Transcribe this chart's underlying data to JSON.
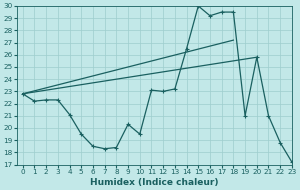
{
  "xlabel": "Humidex (Indice chaleur)",
  "bg_color": "#c2e8e8",
  "grid_color": "#9ecece",
  "line_color": "#1a6060",
  "ylim": [
    17,
    30
  ],
  "xlim": [
    -0.5,
    23
  ],
  "yticks": [
    17,
    18,
    19,
    20,
    21,
    22,
    23,
    24,
    25,
    26,
    27,
    28,
    29,
    30
  ],
  "xticks": [
    0,
    1,
    2,
    3,
    4,
    5,
    6,
    7,
    8,
    9,
    10,
    11,
    12,
    13,
    14,
    15,
    16,
    17,
    18,
    19,
    20,
    21,
    22,
    23
  ],
  "curve1_x": [
    0,
    1,
    2,
    3,
    4,
    5,
    6,
    7,
    8,
    9,
    10,
    11,
    12,
    13,
    14,
    15,
    16,
    17,
    18,
    19,
    20,
    21,
    22,
    23
  ],
  "curve1_y": [
    22.8,
    22.2,
    22.3,
    22.3,
    21.1,
    19.5,
    18.5,
    18.3,
    18.4,
    20.3,
    19.5,
    23.1,
    23.0,
    23.2,
    26.5,
    30.0,
    29.2,
    29.5,
    29.5,
    21.0,
    25.8,
    21.0,
    18.8,
    17.2
  ],
  "line2_x": [
    0,
    18
  ],
  "line2_y": [
    22.8,
    27.2
  ],
  "line3_x": [
    0,
    20
  ],
  "line3_y": [
    22.8,
    25.8
  ],
  "xlabel_fontsize": 6.5,
  "tick_fontsize": 5.2
}
